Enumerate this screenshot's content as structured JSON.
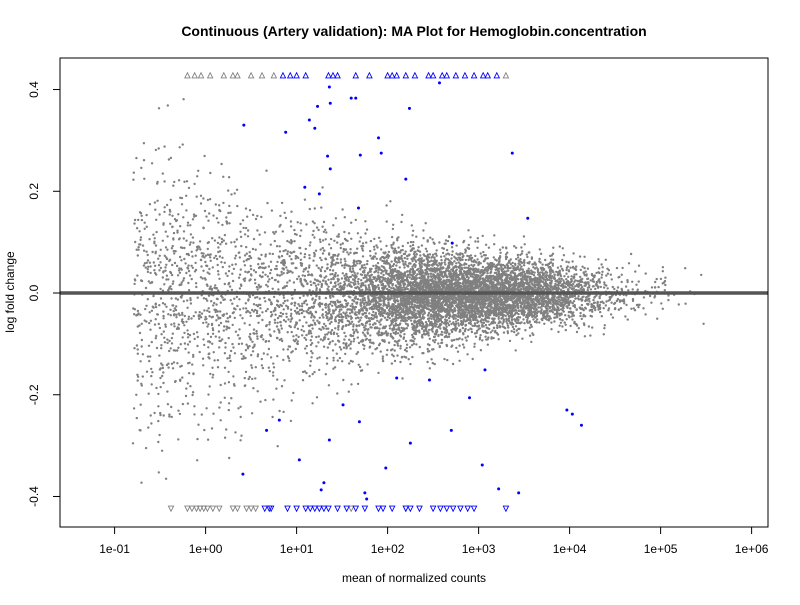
{
  "chart_data": {
    "type": "scatter",
    "title": "Continuous (Artery validation): MA Plot for Hemoglobin.concentration",
    "xlabel": "mean of normalized counts",
    "ylabel": "log fold change",
    "x_scale": "log10",
    "xlim_log10": [
      -1.6,
      6.18
    ],
    "ylim": [
      -0.46,
      0.462
    ],
    "x_ticks": [
      {
        "log10": -1,
        "label": "1e-01"
      },
      {
        "log10": 0,
        "label": "1e+00"
      },
      {
        "log10": 1,
        "label": "1e+01"
      },
      {
        "log10": 2,
        "label": "1e+02"
      },
      {
        "log10": 3,
        "label": "1e+03"
      },
      {
        "log10": 4,
        "label": "1e+04"
      },
      {
        "log10": 5,
        "label": "1e+05"
      },
      {
        "log10": 6,
        "label": "1e+06"
      }
    ],
    "y_ticks": [
      {
        "value": -0.4,
        "label": "-0.4"
      },
      {
        "value": -0.2,
        "label": "-0.2"
      },
      {
        "value": 0.0,
        "label": "0.0"
      },
      {
        "value": 0.2,
        "label": "0.2"
      },
      {
        "value": 0.4,
        "label": "0.4"
      }
    ],
    "reference_line": 0.0,
    "colors": {
      "nonsignificant": "#808080",
      "significant": "#0000ff",
      "reference": "#555555"
    },
    "background_genes": {
      "approx_count": 8000,
      "log10_mean_center": 2.9,
      "note_spread": "decreasing with mean"
    },
    "significant_points": [
      [
        0.42,
        0.33
      ],
      [
        0.88,
        0.316
      ],
      [
        1.14,
        0.34
      ],
      [
        1.2,
        0.324
      ],
      [
        1.23,
        0.367
      ],
      [
        1.36,
        0.405
      ],
      [
        1.37,
        0.373
      ],
      [
        1.6,
        0.383
      ],
      [
        1.65,
        0.383
      ],
      [
        1.34,
        0.269
      ],
      [
        1.37,
        0.244
      ],
      [
        1.09,
        0.208
      ],
      [
        1.25,
        0.195
      ],
      [
        1.68,
        0.167
      ],
      [
        1.7,
        0.271
      ],
      [
        1.9,
        0.305
      ],
      [
        1.93,
        0.275
      ],
      [
        2.2,
        0.224
      ],
      [
        2.24,
        0.363
      ],
      [
        2.57,
        0.413
      ],
      [
        3.37,
        0.275
      ],
      [
        3.54,
        0.147
      ],
      [
        2.71,
        0.098
      ],
      [
        3.44,
        -0.393
      ],
      [
        3.22,
        -0.385
      ],
      [
        3.04,
        -0.338
      ],
      [
        3.97,
        -0.23
      ],
      [
        4.03,
        -0.238
      ],
      [
        4.13,
        -0.26
      ],
      [
        1.75,
        -0.393
      ],
      [
        1.77,
        -0.405
      ],
      [
        1.3,
        -0.373
      ],
      [
        1.27,
        -0.387
      ],
      [
        1.03,
        -0.328
      ],
      [
        1.36,
        -0.289
      ],
      [
        1.51,
        -0.22
      ],
      [
        1.98,
        -0.344
      ],
      [
        2.25,
        -0.295
      ],
      [
        2.1,
        -0.167
      ],
      [
        2.46,
        -0.171
      ],
      [
        2.7,
        -0.27
      ],
      [
        3.07,
        -0.151
      ],
      [
        0.67,
        -0.27
      ],
      [
        0.41,
        -0.356
      ],
      [
        0.81,
        -0.25
      ],
      [
        1.69,
        -0.253
      ],
      [
        2.9,
        -0.206
      ]
    ],
    "clipped_top": {
      "y": 0.428,
      "nonsignificant_log10": [
        -0.2,
        -0.12,
        -0.05,
        0.05,
        0.2,
        0.3,
        0.35,
        0.5,
        0.62,
        0.75,
        3.3
      ],
      "significant_log10": [
        0.85,
        0.93,
        1.0,
        1.1,
        1.35,
        1.4,
        1.45,
        1.65,
        1.8,
        2.0,
        2.05,
        2.1,
        2.2,
        2.3,
        2.45,
        2.5,
        2.6,
        2.65,
        2.75,
        2.85,
        2.95,
        3.05,
        3.1,
        3.2
      ]
    },
    "clipped_bottom": {
      "y": -0.424,
      "nonsignificant_log10": [
        -0.38,
        -0.2,
        -0.15,
        -0.1,
        -0.06,
        -0.02,
        0.02,
        0.08,
        0.15,
        0.3,
        0.35,
        0.45,
        0.5,
        0.55,
        1.6,
        2.2
      ],
      "significant_log10": [
        0.65,
        0.7,
        0.72,
        0.9,
        1.0,
        1.1,
        1.15,
        1.2,
        1.25,
        1.3,
        1.35,
        1.45,
        1.55,
        1.65,
        1.75,
        1.9,
        1.95,
        2.05,
        2.2,
        2.25,
        2.35,
        2.5,
        2.58,
        2.65,
        2.72,
        2.8,
        2.88,
        2.95,
        3.3
      ]
    }
  }
}
